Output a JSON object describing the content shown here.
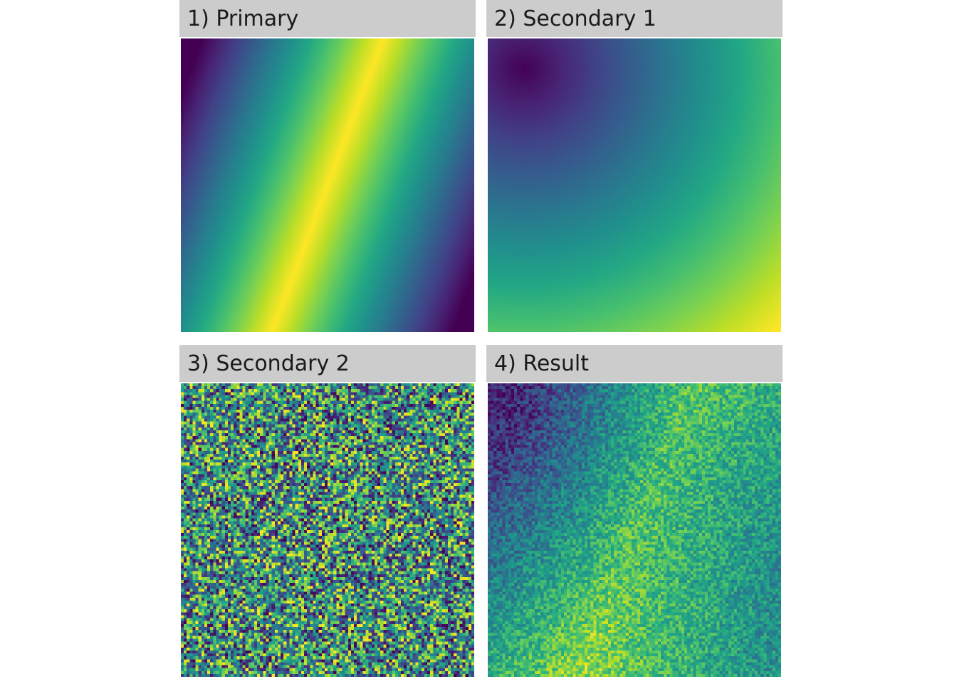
{
  "chart_data": [
    {
      "type": "heatmap",
      "title": "1) Primary",
      "colormap": "viridis",
      "pattern": "diagonal ridge: high values along a band from lower-left to upper-right, falling off to both corners"
    },
    {
      "type": "heatmap",
      "title": "2) Secondary 1",
      "colormap": "viridis",
      "pattern": "radial gradient: minimum near top-left, increasing to maximum at bottom-right corner"
    },
    {
      "type": "heatmap",
      "title": "3) Secondary 2",
      "colormap": "viridis",
      "pattern": "uncorrelated random noise across the full range"
    },
    {
      "type": "heatmap",
      "title": "4) Result",
      "colormap": "viridis",
      "pattern": "noisy combination: dark top-left, brighter ridge toward bottom-center, mid values elsewhere"
    }
  ]
}
